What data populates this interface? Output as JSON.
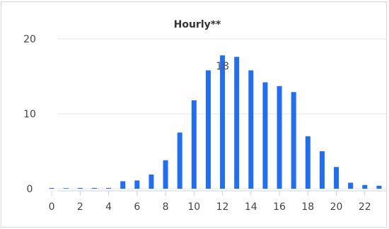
{
  "chart_data": {
    "type": "bar",
    "title": "Hourly**",
    "xlabel": "",
    "ylabel": "",
    "categories": [
      0,
      1,
      2,
      3,
      4,
      5,
      6,
      7,
      8,
      9,
      10,
      11,
      12,
      13,
      14,
      15,
      16,
      17,
      18,
      19,
      20,
      21,
      22,
      23
    ],
    "x_tick_labels": [
      "0",
      "2",
      "4",
      "6",
      "8",
      "10",
      "12",
      "14",
      "16",
      "18",
      "20",
      "22"
    ],
    "y_tick_labels": [
      "0",
      "10",
      "20"
    ],
    "ylim": [
      0,
      20
    ],
    "grid": true,
    "series": [
      {
        "values": [
          0.1,
          0,
          0.1,
          0.1,
          0.1,
          1,
          1.1,
          1.9,
          3.8,
          7.5,
          11.8,
          15.8,
          17.8,
          17.6,
          15.8,
          14.2,
          13.7,
          12.9,
          7,
          5,
          2.9,
          0.8,
          0.5,
          0.4
        ]
      }
    ],
    "data_labels": [
      {
        "category": 12,
        "text": "18"
      }
    ],
    "bar_color": "#1f6ef5",
    "grid_color": "#e6e6e6"
  }
}
